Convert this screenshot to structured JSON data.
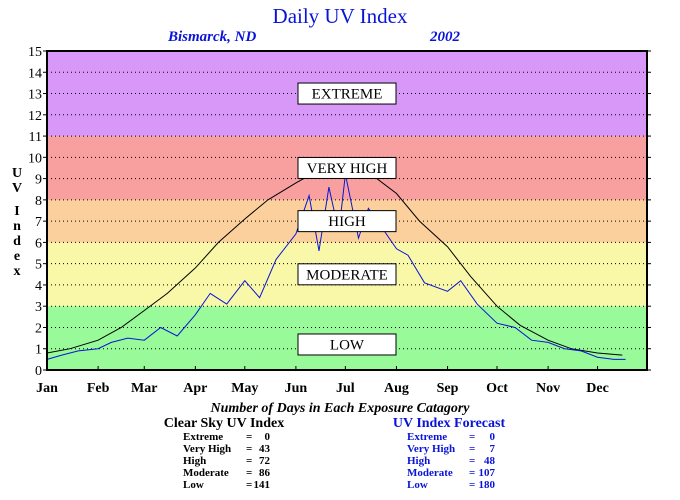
{
  "chart_data": {
    "type": "line",
    "title": "Daily UV Index",
    "location": "Bismarck, ND",
    "year": "2002",
    "ylabel": "UV Index",
    "ylim": [
      0,
      15
    ],
    "y_ticks": [
      "0",
      "1",
      "2",
      "3",
      "4",
      "5",
      "6",
      "7",
      "8",
      "9",
      "10",
      "11",
      "12",
      "13",
      "14",
      "15"
    ],
    "x_ticks": [
      "Jan",
      "Feb",
      "Mar",
      "Apr",
      "May",
      "Jun",
      "Jul",
      "Aug",
      "Sep",
      "Oct",
      "Nov",
      "Dec"
    ],
    "x_tick_days": [
      1,
      32,
      60,
      91,
      121,
      152,
      182,
      213,
      244,
      274,
      305,
      335
    ],
    "xlim": [
      1,
      365
    ],
    "grid": true,
    "zones": [
      {
        "label": "LOW",
        "from": 0,
        "to": 3,
        "color": "#98fa98"
      },
      {
        "label": "MODERATE",
        "from": 3,
        "to": 6,
        "color": "#f8f8a8"
      },
      {
        "label": "HIGH",
        "from": 6,
        "to": 8,
        "color": "#fcd09c"
      },
      {
        "label": "VERY HIGH",
        "from": 8,
        "to": 11,
        "color": "#f8a0a0"
      },
      {
        "label": "EXTREME",
        "from": 11,
        "to": 15,
        "color": "#d898f8"
      }
    ],
    "series": [
      {
        "name": "Clear Sky UV Index",
        "color": "#000000",
        "days": [
          1,
          15,
          32,
          46,
          60,
          74,
          91,
          105,
          121,
          135,
          152,
          166,
          172,
          182,
          196,
          213,
          227,
          244,
          258,
          274,
          288,
          305,
          319,
          335,
          350
        ],
        "values": [
          0.8,
          1.0,
          1.4,
          2.0,
          2.8,
          3.6,
          4.8,
          6.0,
          7.1,
          8.0,
          8.8,
          9.4,
          9.6,
          9.7,
          9.3,
          8.3,
          7.0,
          5.8,
          4.4,
          3.0,
          2.1,
          1.4,
          1.0,
          0.8,
          0.7
        ]
      },
      {
        "name": "UV Index Forecast",
        "color": "#0a14d8",
        "days": [
          1,
          10,
          20,
          32,
          40,
          50,
          60,
          70,
          80,
          91,
          100,
          110,
          121,
          130,
          140,
          152,
          160,
          166,
          172,
          178,
          182,
          190,
          196,
          205,
          213,
          220,
          230,
          244,
          252,
          262,
          274,
          285,
          295,
          305,
          315,
          325,
          335,
          345,
          352
        ],
        "values": [
          0.5,
          0.7,
          0.9,
          1.0,
          1.3,
          1.5,
          1.4,
          2.0,
          1.6,
          2.6,
          3.6,
          3.1,
          4.2,
          3.4,
          5.2,
          6.4,
          8.2,
          5.6,
          8.6,
          6.5,
          9.2,
          6.2,
          7.6,
          6.6,
          5.7,
          5.4,
          4.1,
          3.7,
          4.2,
          3.1,
          2.2,
          2.0,
          1.4,
          1.3,
          1.0,
          0.9,
          0.6,
          0.5,
          0.5
        ]
      }
    ]
  },
  "footer": {
    "title": "Number of Days in Each Exposure Catagory",
    "clear_sky": {
      "header": "Clear Sky UV Index",
      "rows": [
        {
          "label": "Extreme",
          "value": "0"
        },
        {
          "label": "Very High",
          "value": "43"
        },
        {
          "label": "High",
          "value": "72"
        },
        {
          "label": "Moderate",
          "value": "86"
        },
        {
          "label": "Low",
          "value": "141"
        }
      ]
    },
    "forecast": {
      "header": "UV Index Forecast",
      "rows": [
        {
          "label": "Extreme",
          "value": "0"
        },
        {
          "label": "Very High",
          "value": "7"
        },
        {
          "label": "High",
          "value": "48"
        },
        {
          "label": "Moderate",
          "value": "107"
        },
        {
          "label": "Low",
          "value": "180"
        }
      ]
    }
  }
}
